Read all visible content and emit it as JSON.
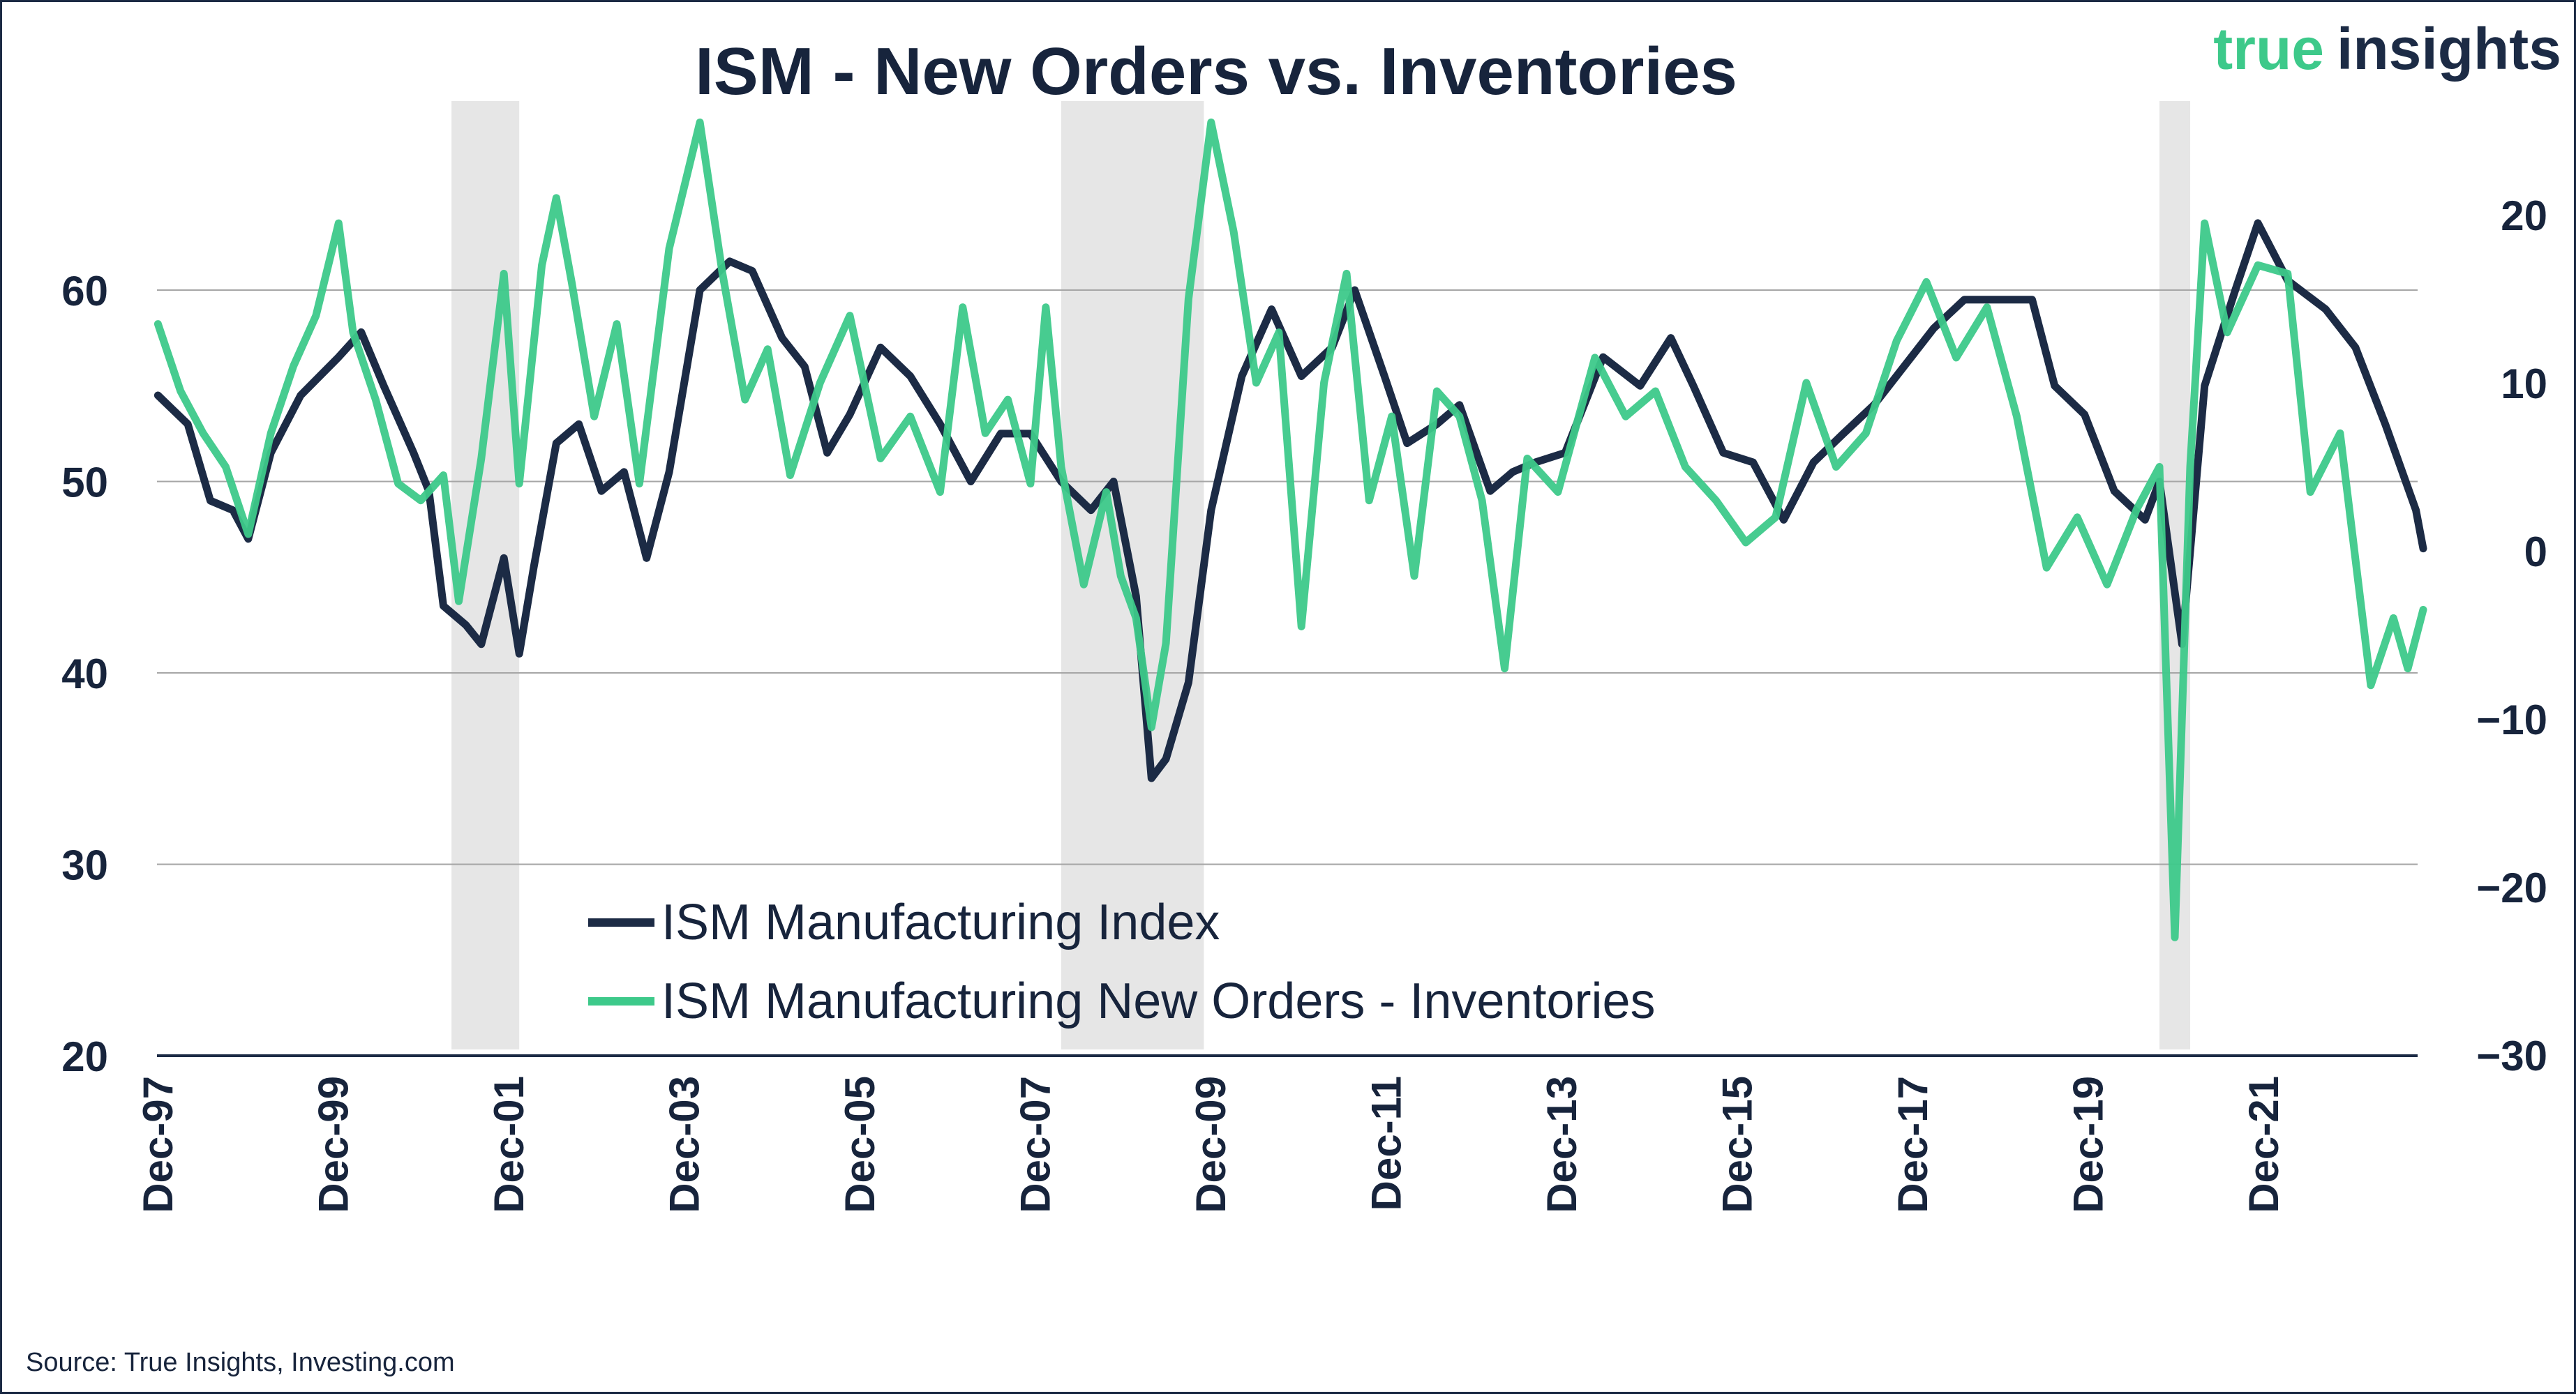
{
  "title": "ISM - New Orders vs. Inventories",
  "logo": {
    "word1": "true",
    "word2": "insights",
    "color1": "#3dc98a",
    "color2": "#1c2b45"
  },
  "source": "Source: True Insights, Investing.com",
  "colors": {
    "navy": "#1c2b45",
    "green": "#3dc98a",
    "recession": "#e6e6e6",
    "grid": "#a6a6a6"
  },
  "chart_data": {
    "type": "line",
    "title": "ISM - New Orders vs. Inventories",
    "left_axis": {
      "min": 20,
      "max": 70,
      "ticks": [
        "20",
        "30",
        "40",
        "50",
        "60"
      ]
    },
    "right_axis": {
      "min": -30,
      "max": 30,
      "ticks": [
        "−30",
        "−20",
        "−10",
        "0",
        "10",
        "20"
      ]
    },
    "x_ticks": [
      "Dec-97",
      "Dec-99",
      "Dec-01",
      "Dec-03",
      "Dec-05",
      "Dec-07",
      "Dec-09",
      "Dec-11",
      "Dec-13",
      "Dec-15",
      "Dec-17",
      "Dec-19",
      "Dec-21"
    ],
    "x_range": [
      1997.917,
      2023.0
    ],
    "recessions": [
      [
        2001.17,
        2001.92
      ],
      [
        2007.92,
        2009.5
      ],
      [
        2020.08,
        2020.42
      ]
    ],
    "grid": true,
    "legend_position": "bottom-center",
    "series": [
      {
        "name": "ISM Manufacturing Index",
        "axis": "left",
        "color": "#1c2b45",
        "points": [
          [
            1997.92,
            54.5
          ],
          [
            1998.25,
            53.0
          ],
          [
            1998.5,
            49.0
          ],
          [
            1998.75,
            48.5
          ],
          [
            1998.92,
            47.0
          ],
          [
            1999.17,
            51.5
          ],
          [
            1999.5,
            54.5
          ],
          [
            1999.92,
            56.5
          ],
          [
            2000.17,
            57.8
          ],
          [
            2000.42,
            55.0
          ],
          [
            2000.75,
            51.5
          ],
          [
            2000.92,
            49.5
          ],
          [
            2001.08,
            43.5
          ],
          [
            2001.33,
            42.5
          ],
          [
            2001.5,
            41.5
          ],
          [
            2001.75,
            46.0
          ],
          [
            2001.92,
            41.0
          ],
          [
            2002.08,
            45.5
          ],
          [
            2002.33,
            52.0
          ],
          [
            2002.58,
            53.0
          ],
          [
            2002.83,
            49.5
          ],
          [
            2003.08,
            50.5
          ],
          [
            2003.33,
            46.0
          ],
          [
            2003.58,
            50.5
          ],
          [
            2003.92,
            60.0
          ],
          [
            2004.25,
            61.5
          ],
          [
            2004.5,
            61.0
          ],
          [
            2004.83,
            57.5
          ],
          [
            2005.08,
            56.0
          ],
          [
            2005.33,
            51.5
          ],
          [
            2005.58,
            53.5
          ],
          [
            2005.92,
            57.0
          ],
          [
            2006.25,
            55.5
          ],
          [
            2006.58,
            53.0
          ],
          [
            2006.92,
            50.0
          ],
          [
            2007.25,
            52.5
          ],
          [
            2007.58,
            52.5
          ],
          [
            2007.92,
            50.0
          ],
          [
            2008.25,
            48.5
          ],
          [
            2008.5,
            50.0
          ],
          [
            2008.75,
            44.0
          ],
          [
            2008.92,
            34.5
          ],
          [
            2009.08,
            35.5
          ],
          [
            2009.33,
            39.5
          ],
          [
            2009.58,
            48.5
          ],
          [
            2009.92,
            55.5
          ],
          [
            2010.25,
            59.0
          ],
          [
            2010.58,
            55.5
          ],
          [
            2010.92,
            57.0
          ],
          [
            2011.17,
            60.0
          ],
          [
            2011.5,
            55.5
          ],
          [
            2011.75,
            52.0
          ],
          [
            2012.08,
            53.0
          ],
          [
            2012.33,
            54.0
          ],
          [
            2012.67,
            49.5
          ],
          [
            2012.92,
            50.5
          ],
          [
            2013.17,
            51.0
          ],
          [
            2013.5,
            51.5
          ],
          [
            2013.92,
            56.5
          ],
          [
            2014.33,
            55.0
          ],
          [
            2014.67,
            57.5
          ],
          [
            2014.92,
            55.0
          ],
          [
            2015.25,
            51.5
          ],
          [
            2015.58,
            51.0
          ],
          [
            2015.92,
            48.0
          ],
          [
            2016.25,
            51.0
          ],
          [
            2016.58,
            52.5
          ],
          [
            2016.92,
            54.0
          ],
          [
            2017.25,
            56.0
          ],
          [
            2017.58,
            58.0
          ],
          [
            2017.92,
            59.5
          ],
          [
            2018.33,
            59.5
          ],
          [
            2018.67,
            59.5
          ],
          [
            2018.92,
            55.0
          ],
          [
            2019.25,
            53.5
          ],
          [
            2019.58,
            49.5
          ],
          [
            2019.92,
            48.0
          ],
          [
            2020.08,
            50.0
          ],
          [
            2020.33,
            41.5
          ],
          [
            2020.58,
            55.0
          ],
          [
            2020.92,
            60.0
          ],
          [
            2021.17,
            63.5
          ],
          [
            2021.5,
            60.5
          ],
          [
            2021.92,
            59.0
          ],
          [
            2022.25,
            57.0
          ],
          [
            2022.58,
            53.0
          ],
          [
            2022.92,
            48.5
          ],
          [
            2023.0,
            46.5
          ]
        ]
      },
      {
        "name": "ISM Manufacturing New Orders - Inventories",
        "axis": "right",
        "color": "#3dc98a",
        "points": [
          [
            1997.92,
            13.5
          ],
          [
            1998.17,
            9.5
          ],
          [
            1998.42,
            7.0
          ],
          [
            1998.67,
            5.0
          ],
          [
            1998.92,
            1.0
          ],
          [
            1999.17,
            7.0
          ],
          [
            1999.42,
            11.0
          ],
          [
            1999.67,
            14.0
          ],
          [
            1999.92,
            19.5
          ],
          [
            2000.08,
            13.0
          ],
          [
            2000.33,
            9.0
          ],
          [
            2000.58,
            4.0
          ],
          [
            2000.83,
            3.0
          ],
          [
            2001.08,
            4.5
          ],
          [
            2001.25,
            -3.0
          ],
          [
            2001.5,
            5.5
          ],
          [
            2001.75,
            16.5
          ],
          [
            2001.92,
            4.0
          ],
          [
            2002.17,
            17.0
          ],
          [
            2002.33,
            21.0
          ],
          [
            2002.5,
            16.0
          ],
          [
            2002.75,
            8.0
          ],
          [
            2003.0,
            13.5
          ],
          [
            2003.25,
            4.0
          ],
          [
            2003.58,
            18.0
          ],
          [
            2003.92,
            25.5
          ],
          [
            2004.17,
            16.5
          ],
          [
            2004.42,
            9.0
          ],
          [
            2004.67,
            12.0
          ],
          [
            2004.92,
            4.5
          ],
          [
            2005.25,
            10.0
          ],
          [
            2005.58,
            14.0
          ],
          [
            2005.92,
            5.5
          ],
          [
            2006.25,
            8.0
          ],
          [
            2006.58,
            3.5
          ],
          [
            2006.83,
            14.5
          ],
          [
            2007.08,
            7.0
          ],
          [
            2007.33,
            9.0
          ],
          [
            2007.58,
            4.0
          ],
          [
            2007.75,
            14.5
          ],
          [
            2007.92,
            5.0
          ],
          [
            2008.17,
            -2.0
          ],
          [
            2008.42,
            3.5
          ],
          [
            2008.58,
            -1.5
          ],
          [
            2008.75,
            -4.0
          ],
          [
            2008.92,
            -10.5
          ],
          [
            2009.08,
            -5.5
          ],
          [
            2009.33,
            15.0
          ],
          [
            2009.58,
            25.5
          ],
          [
            2009.83,
            19.0
          ],
          [
            2010.08,
            10.0
          ],
          [
            2010.33,
            13.0
          ],
          [
            2010.58,
            -4.5
          ],
          [
            2010.83,
            10.0
          ],
          [
            2011.08,
            16.5
          ],
          [
            2011.33,
            3.0
          ],
          [
            2011.58,
            8.0
          ],
          [
            2011.83,
            -1.5
          ],
          [
            2012.08,
            9.5
          ],
          [
            2012.33,
            8.0
          ],
          [
            2012.58,
            3.0
          ],
          [
            2012.83,
            -7.0
          ],
          [
            2013.08,
            5.5
          ],
          [
            2013.42,
            3.5
          ],
          [
            2013.83,
            11.5
          ],
          [
            2014.17,
            8.0
          ],
          [
            2014.5,
            9.5
          ],
          [
            2014.83,
            5.0
          ],
          [
            2015.17,
            3.0
          ],
          [
            2015.5,
            0.5
          ],
          [
            2015.83,
            2.0
          ],
          [
            2016.17,
            10.0
          ],
          [
            2016.5,
            5.0
          ],
          [
            2016.83,
            7.0
          ],
          [
            2017.17,
            12.5
          ],
          [
            2017.5,
            16.0
          ],
          [
            2017.83,
            11.5
          ],
          [
            2018.17,
            14.5
          ],
          [
            2018.5,
            8.0
          ],
          [
            2018.83,
            -1.0
          ],
          [
            2019.17,
            2.0
          ],
          [
            2019.5,
            -2.0
          ],
          [
            2019.83,
            2.5
          ],
          [
            2020.08,
            5.0
          ],
          [
            2020.25,
            -23.0
          ],
          [
            2020.42,
            5.0
          ],
          [
            2020.58,
            19.5
          ],
          [
            2020.83,
            13.0
          ],
          [
            2021.17,
            17.0
          ],
          [
            2021.5,
            16.5
          ],
          [
            2021.75,
            3.5
          ],
          [
            2022.08,
            7.0
          ],
          [
            2022.42,
            -8.0
          ],
          [
            2022.67,
            -4.0
          ],
          [
            2022.83,
            -7.0
          ],
          [
            2023.0,
            -3.5
          ]
        ]
      }
    ]
  }
}
